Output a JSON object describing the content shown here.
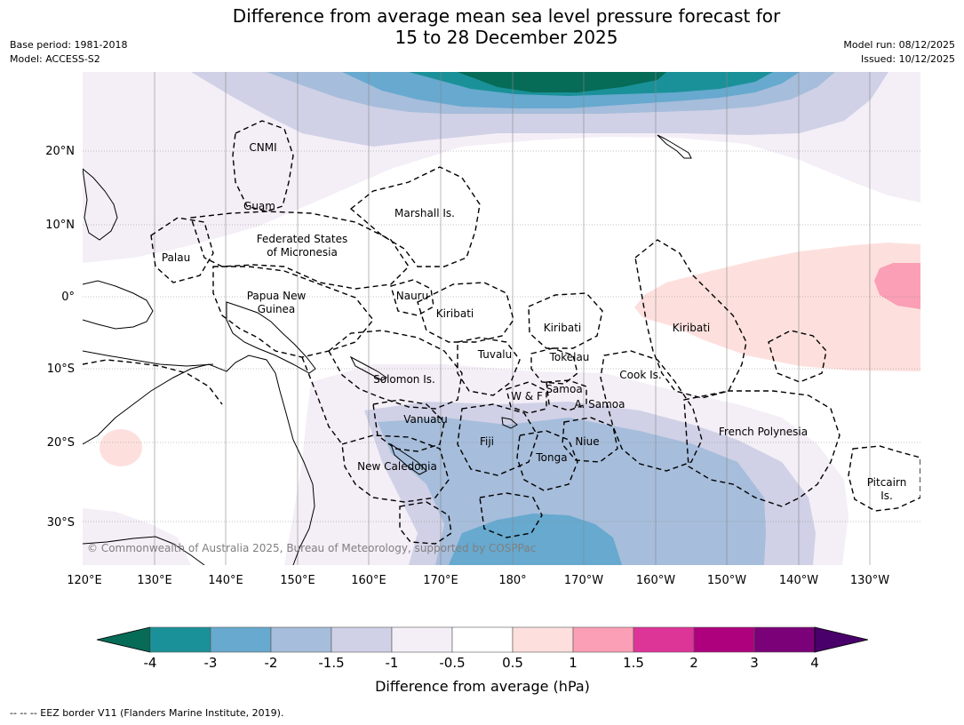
{
  "title_line1": "Difference from average mean sea level pressure forecast for",
  "title_line2": "15 to 28 December 2025",
  "base_period": "Base period: 1981-2018",
  "model": "Model: ACCESS-S2",
  "model_run": "Model run: 08/12/2025",
  "issued": "Issued: 10/12/2025",
  "copyright": "© Commonwealth of Australia 2025, Bureau of Meteorology, supported by COSPPac",
  "footer": "--  --  -- EEZ border V11 (Flanders Marine Institute, 2019).",
  "map": {
    "lon_labels": [
      "120°E",
      "130°E",
      "140°E",
      "150°E",
      "160°E",
      "170°E",
      "180°",
      "170°W",
      "160°W",
      "150°W",
      "140°W",
      "130°W"
    ],
    "lat_labels": [
      "20°N",
      "10°N",
      "0°",
      "10°S",
      "20°S",
      "30°S"
    ],
    "regions": [
      {
        "name": "CNMI"
      },
      {
        "name": "Guam"
      },
      {
        "name": "Marshall Is."
      },
      {
        "name": "Federated States"
      },
      {
        "name": "of Micronesia"
      },
      {
        "name": "Palau"
      },
      {
        "name": "Papua New"
      },
      {
        "name": "Guinea"
      },
      {
        "name": "Nauru"
      },
      {
        "name": "Kiribati"
      },
      {
        "name": "Kiribati"
      },
      {
        "name": "Kiribati"
      },
      {
        "name": "Tuvalu"
      },
      {
        "name": "Tokelau"
      },
      {
        "name": "Solomon Is."
      },
      {
        "name": "Cook Is."
      },
      {
        "name": "Samoa"
      },
      {
        "name": "W & F"
      },
      {
        "name": "A. Samoa"
      },
      {
        "name": "Vanuatu"
      },
      {
        "name": "Fiji"
      },
      {
        "name": "Niue"
      },
      {
        "name": "Tonga"
      },
      {
        "name": "French Polynesia"
      },
      {
        "name": "New Caledonia"
      },
      {
        "name": "Pitcairn"
      },
      {
        "name": "Is."
      }
    ]
  },
  "colorbar": {
    "label": "Difference from average (hPa)",
    "ticks": [
      "-4",
      "-3",
      "-2",
      "-1.5",
      "-1",
      "-0.5",
      "0.5",
      "1",
      "1.5",
      "2",
      "3",
      "4"
    ],
    "colors": {
      "below_min": "#066b57",
      "bins": [
        "#1a9199",
        "#67a9cf",
        "#a6bddb",
        "#d0d1e6",
        "#f4eef7",
        "#ffffff",
        "#fde0dd",
        "#fa9fb5",
        "#dd3497",
        "#ae017e",
        "#7a0177"
      ],
      "above_max": "#49006a"
    }
  }
}
